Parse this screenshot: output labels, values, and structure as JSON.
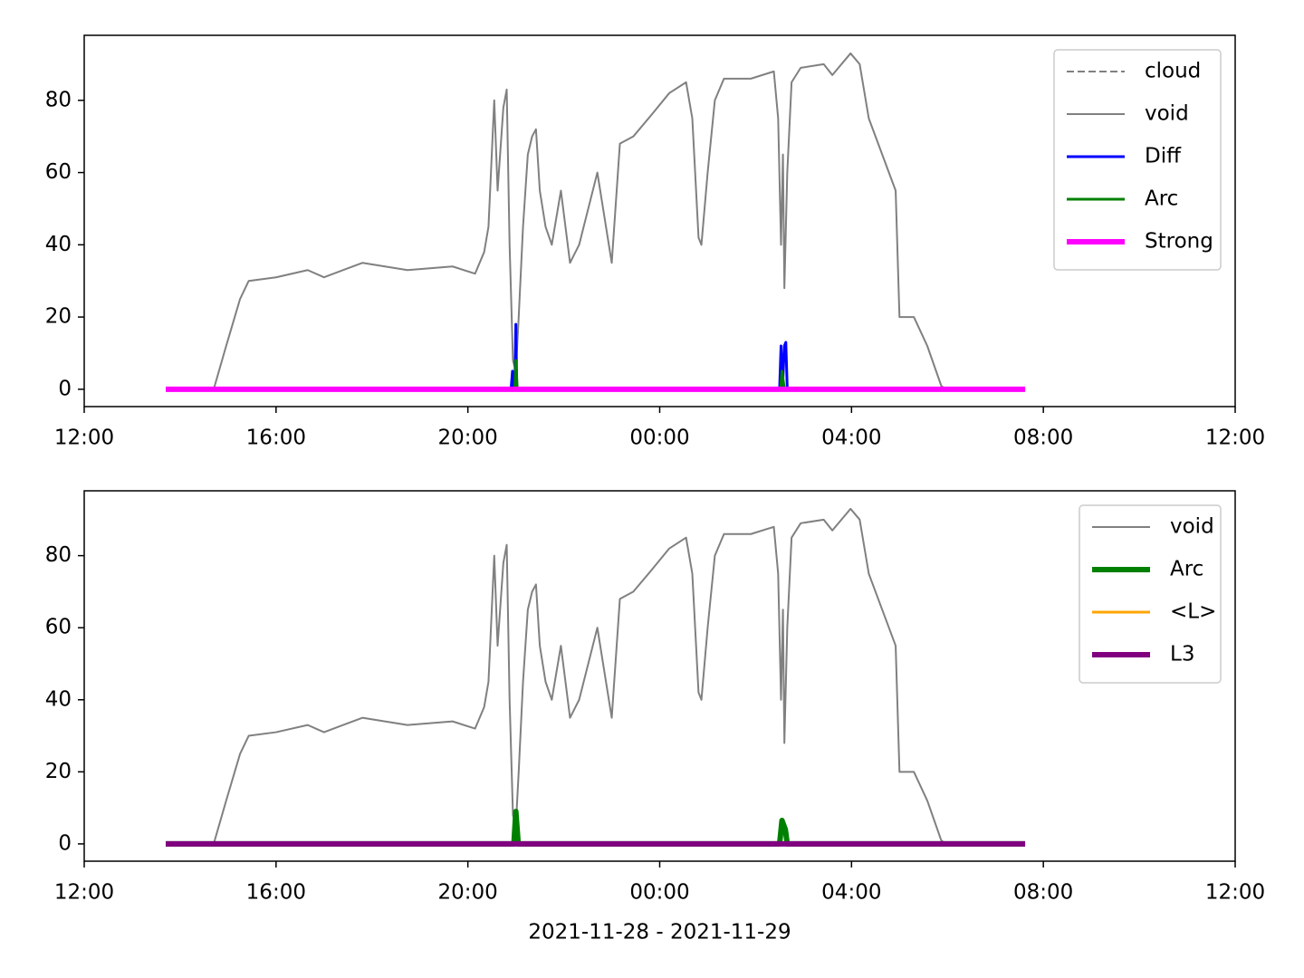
{
  "chart_data": [
    {
      "type": "line",
      "xlim": [
        12,
        36
      ],
      "ylim": [
        -4.8,
        98
      ],
      "xticks": [
        {
          "value": 12,
          "label": "12:00"
        },
        {
          "value": 16,
          "label": "16:00"
        },
        {
          "value": 20,
          "label": "20:00"
        },
        {
          "value": 24,
          "label": "00:00"
        },
        {
          "value": 28,
          "label": "04:00"
        },
        {
          "value": 32,
          "label": "08:00"
        },
        {
          "value": 36,
          "label": "12:00"
        }
      ],
      "yticks": [
        0,
        20,
        40,
        60,
        80
      ],
      "legend": "upper right",
      "series": [
        {
          "name": "cloud",
          "color": "#808080",
          "linestyle": "dashed",
          "linewidth": 1,
          "x": [],
          "values": []
        },
        {
          "name": "void",
          "color": "#808080",
          "linestyle": "solid",
          "linewidth": 1,
          "x": [
            14.7,
            14.96,
            15.25,
            15.43,
            16,
            16.66,
            17,
            17.8,
            18.74,
            19.68,
            20.15,
            20.34,
            20.43,
            20.55,
            20.62,
            20.74,
            20.81,
            20.87,
            20.94,
            21,
            21.06,
            21.15,
            21.25,
            21.34,
            21.42,
            21.5,
            21.62,
            21.75,
            21.94,
            22.13,
            22.32,
            22.7,
            23,
            23.17,
            23.45,
            23.83,
            24.2,
            24.55,
            24.68,
            24.81,
            24.87,
            25,
            25.15,
            25.34,
            25.9,
            26.38,
            26.47,
            26.53,
            26.57,
            26.6,
            26.66,
            26.75,
            26.94,
            27.42,
            27.6,
            27.98,
            28.17,
            28.36,
            28.64,
            28.92,
            29,
            29.3,
            29.58,
            29.87,
            29.96,
            31.62
          ],
          "values": [
            0,
            12,
            25,
            30,
            31,
            33,
            31,
            35,
            33,
            34,
            32,
            38,
            45,
            80,
            55,
            78,
            83,
            40,
            8,
            5,
            20,
            45,
            65,
            70,
            72,
            55,
            45,
            40,
            55,
            35,
            40,
            60,
            35,
            68,
            70,
            76,
            82,
            85,
            75,
            42,
            40,
            60,
            80,
            86,
            86,
            88,
            75,
            40,
            65,
            28,
            60,
            85,
            89,
            90,
            87,
            93,
            90,
            75,
            65,
            55,
            20,
            20,
            12,
            1,
            0,
            0
          ]
        },
        {
          "name": "Diff",
          "color": "#0000ff",
          "linestyle": "solid",
          "linewidth": 1.5,
          "x": [
            13.7,
            20.9,
            20.93,
            20.95,
            20.98,
            21.0,
            21.02,
            21.05,
            26.5,
            26.53,
            26.56,
            26.6,
            26.63,
            26.66,
            31.62
          ],
          "values": [
            0,
            0,
            5,
            0,
            0,
            18,
            0,
            0,
            0,
            12,
            0,
            12,
            13,
            0,
            0
          ]
        },
        {
          "name": "Arc",
          "color": "#008000",
          "linestyle": "solid",
          "linewidth": 1.5,
          "x": [
            13.7,
            20.98,
            21.0,
            21.03,
            26.52,
            26.55,
            26.6,
            31.62
          ],
          "values": [
            0,
            0,
            8,
            0,
            0,
            5,
            0,
            0
          ]
        },
        {
          "name": "Strong",
          "color": "#ff00ff",
          "linestyle": "solid",
          "linewidth": 3,
          "x": [
            13.7,
            31.62
          ],
          "values": [
            0,
            0
          ]
        }
      ]
    },
    {
      "type": "line",
      "xlim": [
        12,
        36
      ],
      "ylim": [
        -4.8,
        98
      ],
      "xticks": [
        {
          "value": 12,
          "label": "12:00"
        },
        {
          "value": 16,
          "label": "16:00"
        },
        {
          "value": 20,
          "label": "20:00"
        },
        {
          "value": 24,
          "label": "00:00"
        },
        {
          "value": 28,
          "label": "04:00"
        },
        {
          "value": 32,
          "label": "08:00"
        },
        {
          "value": 36,
          "label": "12:00"
        }
      ],
      "yticks": [
        0,
        20,
        40,
        60,
        80
      ],
      "xlabel": "2021-11-28 - 2021-11-29",
      "legend": "upper right",
      "series": [
        {
          "name": "void",
          "color": "#808080",
          "linestyle": "solid",
          "linewidth": 1,
          "x": [
            14.7,
            14.96,
            15.25,
            15.43,
            16,
            16.66,
            17,
            17.8,
            18.74,
            19.68,
            20.15,
            20.34,
            20.43,
            20.55,
            20.62,
            20.74,
            20.81,
            20.87,
            20.94,
            21,
            21.06,
            21.15,
            21.25,
            21.34,
            21.42,
            21.5,
            21.62,
            21.75,
            21.94,
            22.13,
            22.32,
            22.7,
            23,
            23.17,
            23.45,
            23.83,
            24.2,
            24.55,
            24.68,
            24.81,
            24.87,
            25,
            25.15,
            25.34,
            25.9,
            26.38,
            26.47,
            26.53,
            26.57,
            26.6,
            26.66,
            26.75,
            26.94,
            27.42,
            27.6,
            27.98,
            28.17,
            28.36,
            28.64,
            28.92,
            29,
            29.3,
            29.58,
            29.87,
            29.96,
            31.62
          ],
          "values": [
            0,
            12,
            25,
            30,
            31,
            33,
            31,
            35,
            33,
            34,
            32,
            38,
            45,
            80,
            55,
            78,
            83,
            40,
            8,
            5,
            20,
            45,
            65,
            70,
            72,
            55,
            45,
            40,
            55,
            35,
            40,
            60,
            35,
            68,
            70,
            76,
            82,
            85,
            75,
            42,
            40,
            60,
            80,
            86,
            86,
            88,
            75,
            40,
            65,
            28,
            60,
            85,
            89,
            90,
            87,
            93,
            90,
            75,
            65,
            55,
            20,
            20,
            12,
            1,
            0,
            0
          ]
        },
        {
          "name": "Arc",
          "color": "#008000",
          "linestyle": "solid",
          "linewidth": 3,
          "x": [
            13.7,
            20.96,
            21.0,
            21.05,
            26.5,
            26.55,
            26.62,
            26.66,
            31.62
          ],
          "values": [
            0,
            0,
            9,
            0,
            0,
            6.5,
            4,
            0,
            0
          ]
        },
        {
          "name": "<L>",
          "color": "#ffa500",
          "linestyle": "solid",
          "linewidth": 1.5,
          "x": [
            13.7,
            31.62
          ],
          "values": [
            0,
            0
          ]
        },
        {
          "name": "L3",
          "color": "#800080",
          "linestyle": "solid",
          "linewidth": 3,
          "x": [
            13.7,
            31.62
          ],
          "values": [
            0,
            0
          ]
        }
      ]
    }
  ]
}
